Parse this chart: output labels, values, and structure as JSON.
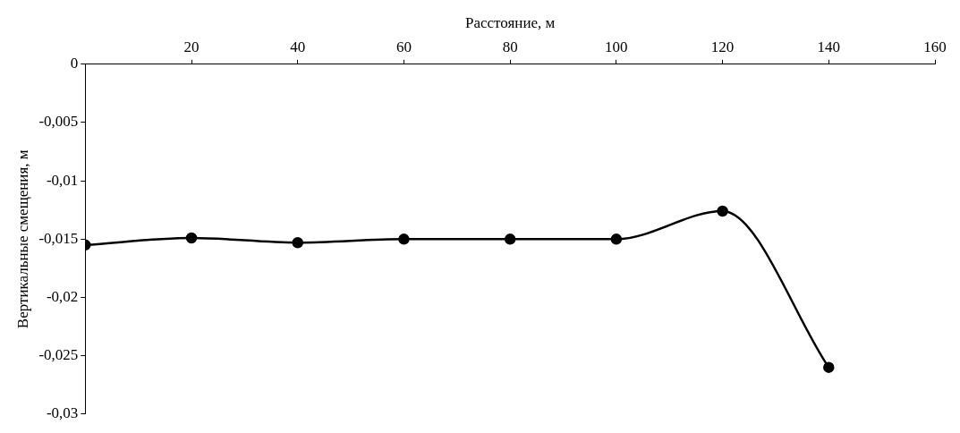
{
  "chart_data": {
    "type": "line",
    "xlabel": "Расстояние, м",
    "ylabel": "Вертикальные смещения, м",
    "x": [
      0,
      20,
      40,
      60,
      80,
      100,
      120,
      140
    ],
    "series": [
      {
        "color": "#000000",
        "values": [
          -0.0155,
          -0.0149,
          -0.0153,
          -0.015,
          -0.015,
          -0.015,
          -0.0126,
          -0.026
        ]
      }
    ],
    "xlim": [
      0,
      160
    ],
    "xticks": [
      20,
      40,
      60,
      80,
      100,
      120,
      140,
      160
    ],
    "ylim": [
      -0.03,
      0
    ],
    "yticks": [
      {
        "value": 0,
        "label": "0"
      },
      {
        "value": -0.005,
        "label": "-0,005"
      },
      {
        "value": -0.01,
        "label": "-0,01"
      },
      {
        "value": -0.015,
        "label": "-0,015"
      },
      {
        "value": -0.02,
        "label": "-0,02"
      },
      {
        "value": -0.025,
        "label": "-0,025"
      },
      {
        "value": -0.03,
        "label": "-0,03"
      }
    ],
    "grid": false,
    "legend": false,
    "marker": "circle",
    "line_style": "solid"
  }
}
